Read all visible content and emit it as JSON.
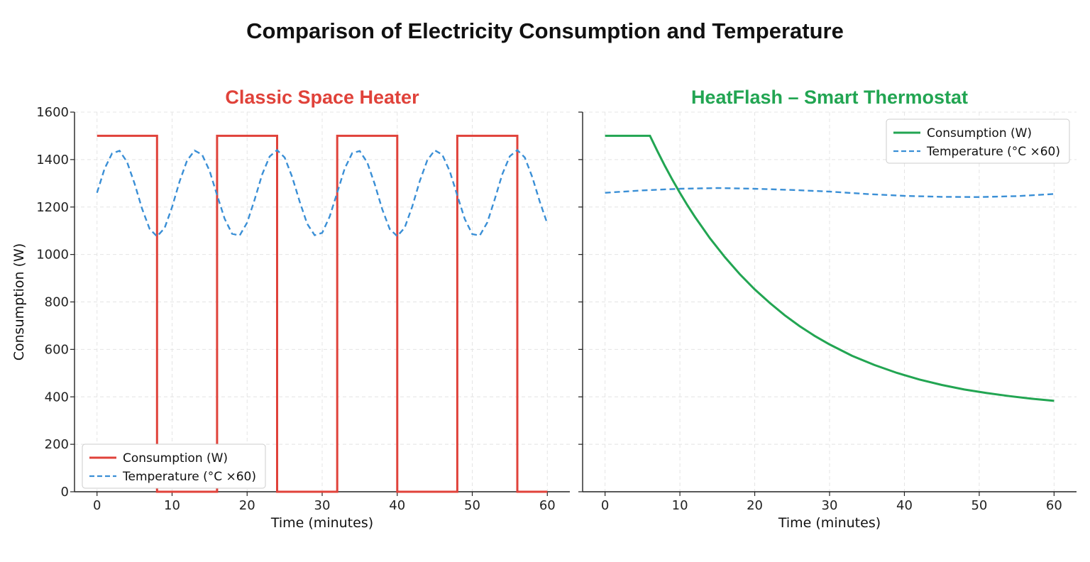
{
  "title": "Comparison of Electricity Consumption and Temperature",
  "chart_data": [
    {
      "type": "line",
      "title": "Classic Space Heater",
      "title_color": "#e0423a",
      "xlabel": "Time (minutes)",
      "ylabel": "Consumption (W)",
      "xlim": [
        -3,
        63
      ],
      "ylim": [
        0,
        1600
      ],
      "xticks": [
        "0",
        "10",
        "20",
        "30",
        "40",
        "50",
        "60"
      ],
      "yticks": [
        "0",
        "200",
        "400",
        "600",
        "800",
        "1000",
        "1200",
        "1400",
        "1600"
      ],
      "grid": true,
      "legend_position": "bottom-left",
      "series": [
        {
          "name": "Consumption (W)",
          "color": "#e0423a",
          "style": "solid",
          "x": [
            0,
            8,
            8,
            16,
            16,
            24,
            24,
            32,
            32,
            40,
            40,
            48,
            48,
            56,
            56,
            60
          ],
          "y": [
            1500,
            1500,
            0,
            0,
            1500,
            1500,
            0,
            0,
            1500,
            1500,
            0,
            0,
            1500,
            1500,
            0,
            0
          ]
        },
        {
          "name": "Temperature (°C ×60)",
          "color": "#3a8fd6",
          "style": "dashed",
          "x": [
            0,
            1,
            2,
            3,
            4,
            5,
            6,
            7,
            8,
            9,
            10,
            11,
            12,
            13,
            14,
            15,
            16,
            17,
            18,
            19,
            20,
            21,
            22,
            23,
            24,
            25,
            26,
            27,
            28,
            29,
            30,
            31,
            32,
            33,
            34,
            35,
            36,
            37,
            38,
            39,
            40,
            41,
            42,
            43,
            44,
            45,
            46,
            47,
            48,
            49,
            50,
            51,
            52,
            53,
            54,
            55,
            56,
            57,
            58,
            59,
            60
          ],
          "y": [
            1260,
            1361,
            1426,
            1437,
            1390,
            1299,
            1193,
            1108,
            1076,
            1111,
            1200,
            1308,
            1396,
            1438,
            1421,
            1352,
            1250,
            1151,
            1087,
            1080,
            1134,
            1231,
            1337,
            1413,
            1440,
            1409,
            1327,
            1223,
            1130,
            1081,
            1091,
            1160,
            1261,
            1362,
            1427,
            1436,
            1388,
            1297,
            1191,
            1107,
            1077,
            1113,
            1202,
            1309,
            1397,
            1439,
            1421,
            1351,
            1249,
            1150,
            1086,
            1080,
            1135,
            1233,
            1338,
            1414,
            1440,
            1409,
            1326,
            1222,
            1130
          ]
        }
      ]
    },
    {
      "type": "line",
      "title": "HeatFlash – Smart Thermostat",
      "title_color": "#22a552",
      "xlabel": "Time (minutes)",
      "ylabel": "",
      "xlim": [
        -3,
        63
      ],
      "ylim": [
        0,
        1600
      ],
      "xticks": [
        "0",
        "10",
        "20",
        "30",
        "40",
        "50",
        "60"
      ],
      "yticks": [],
      "grid": true,
      "legend_position": "top-right",
      "series": [
        {
          "name": "Consumption (W)",
          "color": "#22a552",
          "style": "solid",
          "x": [
            0,
            6,
            7,
            8,
            9,
            10,
            11,
            12,
            14,
            16,
            18,
            20,
            22,
            24,
            26,
            28,
            30,
            33,
            36,
            39,
            42,
            45,
            48,
            51,
            54,
            57,
            60
          ],
          "y": [
            1500,
            1500,
            1435,
            1373,
            1315,
            1260,
            1208,
            1159,
            1069,
            989,
            917,
            853,
            796,
            744,
            698,
            657,
            621,
            573,
            534,
            501,
            473,
            450,
            431,
            416,
            403,
            392,
            383
          ]
        },
        {
          "name": "Temperature (°C ×60)",
          "color": "#3a8fd6",
          "style": "dashed",
          "x": [
            0,
            5,
            10,
            15,
            20,
            25,
            30,
            35,
            40,
            45,
            50,
            55,
            60
          ],
          "y": [
            1260,
            1270,
            1277,
            1280,
            1277,
            1272,
            1265,
            1255,
            1247,
            1243,
            1242,
            1246,
            1255
          ]
        }
      ]
    }
  ]
}
